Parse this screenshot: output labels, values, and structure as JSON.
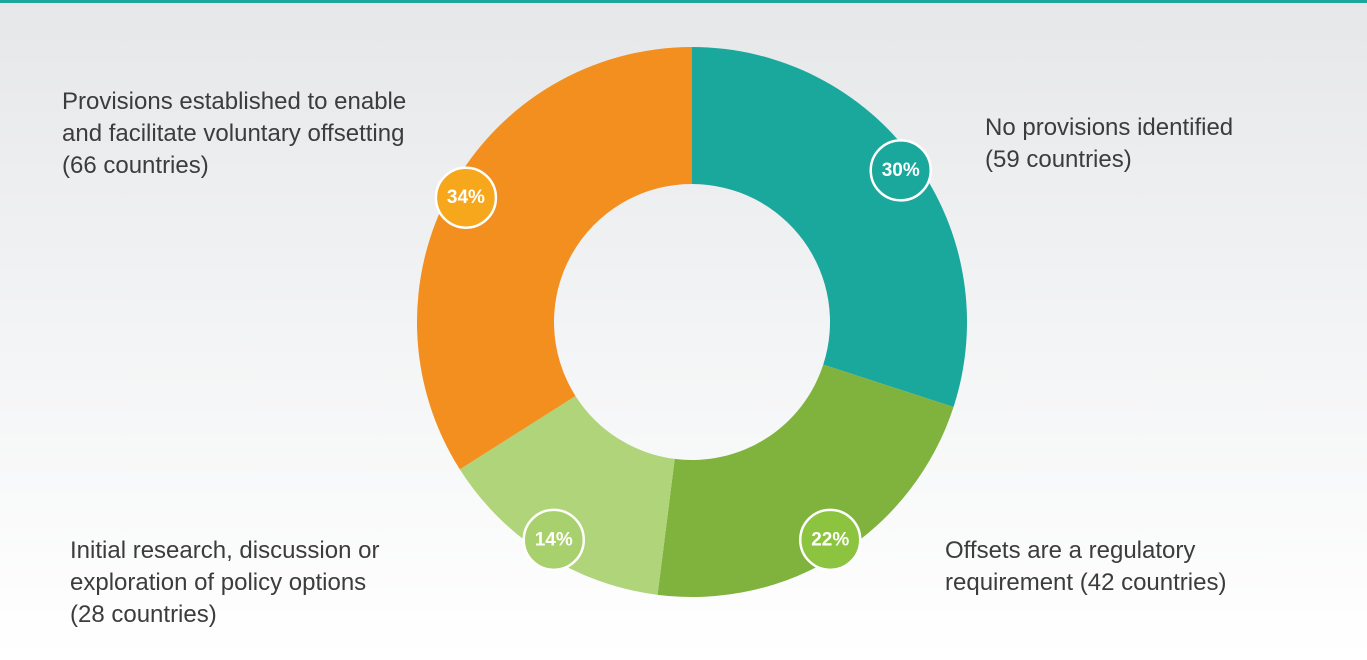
{
  "chart_data": {
    "type": "donut",
    "categories": [
      "No provisions identified\n(59 countries)",
      "Offsets are a regulatory\nrequirement (42 countries)",
      "Initial research, discussion or\nexploration of policy options\n(28 countries)",
      "Provisions established to enable\nand facilitate voluntary offsetting\n(66 countries)"
    ],
    "values": [
      30,
      22,
      14,
      34
    ],
    "value_labels": [
      "30%",
      "22%",
      "14%",
      "34%"
    ],
    "colors": [
      "#1aa79c",
      "#80b33e",
      "#b0d47a",
      "#f28f1f"
    ],
    "badge_colors": [
      "#1aa79c",
      "#8cc43f",
      "#a8d06c",
      "#f6a71c"
    ]
  }
}
